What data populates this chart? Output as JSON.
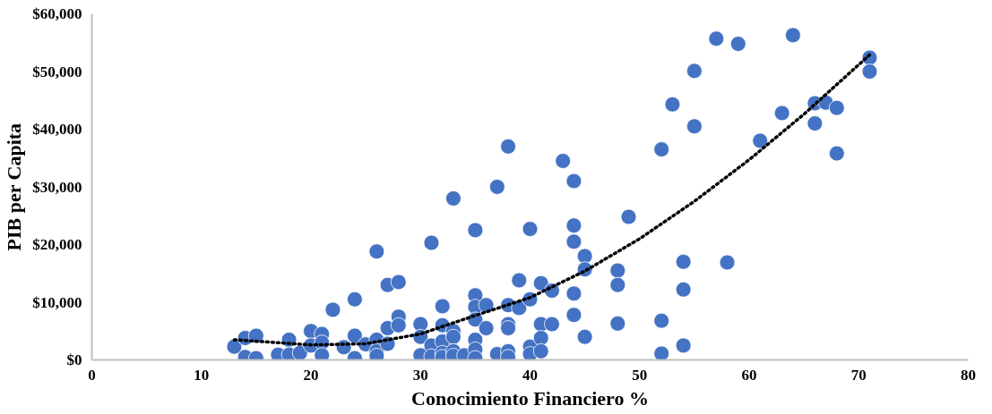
{
  "chart_data": {
    "type": "scatter",
    "xlabel": "Conocimiento Financiero %",
    "ylabel": "PIB per Capita",
    "xlim": [
      0,
      80
    ],
    "xticks": [
      0,
      10,
      20,
      30,
      40,
      50,
      60,
      70,
      80
    ],
    "ylim": [
      0,
      60000
    ],
    "yticks": [
      {
        "value": 0,
        "label": "$0"
      },
      {
        "value": 10000,
        "label": "$10,000"
      },
      {
        "value": 20000,
        "label": "$20,000"
      },
      {
        "value": 30000,
        "label": "$30,000"
      },
      {
        "value": 40000,
        "label": "$40,000"
      },
      {
        "value": 50000,
        "label": "$50,000"
      },
      {
        "value": 60000,
        "label": "$60,000"
      }
    ],
    "grid": false,
    "series": [
      {
        "color": "#4472c4",
        "marker": "circle",
        "x": [
          13,
          14,
          14,
          15,
          15,
          17,
          18,
          18,
          19,
          20,
          20,
          21,
          21,
          21,
          22,
          23,
          24,
          24,
          24,
          25,
          26,
          26,
          26,
          26,
          27,
          27,
          27,
          28,
          28,
          28,
          30,
          30,
          30,
          31,
          31,
          31,
          32,
          32,
          32,
          32,
          32,
          33,
          33,
          33,
          33,
          33,
          34,
          35,
          35,
          35,
          35,
          35,
          35,
          35,
          36,
          36,
          37,
          37,
          38,
          38,
          38,
          38,
          38,
          38,
          39,
          39,
          40,
          40,
          40,
          40,
          41,
          41,
          41,
          41,
          42,
          42,
          43,
          44,
          44,
          44,
          44,
          44,
          45,
          45,
          45,
          48,
          48,
          48,
          49,
          52,
          52,
          52,
          53,
          54,
          54,
          54,
          55,
          55,
          57,
          58,
          59,
          61,
          63,
          64,
          66,
          66,
          67,
          68,
          68,
          71,
          71
        ],
        "values": [
          2300,
          3800,
          500,
          4200,
          300,
          900,
          3500,
          900,
          1200,
          5000,
          2500,
          4500,
          3000,
          800,
          8700,
          2200,
          10500,
          4200,
          300,
          2700,
          18800,
          3500,
          1500,
          700,
          13000,
          5500,
          2800,
          13500,
          7500,
          6000,
          6200,
          4000,
          800,
          20300,
          2500,
          600,
          9300,
          6000,
          3200,
          1200,
          500,
          28000,
          5000,
          4000,
          1500,
          700,
          800,
          22500,
          11200,
          9200,
          7000,
          3500,
          1800,
          300,
          9500,
          5500,
          30000,
          1000,
          37000,
          9500,
          6200,
          5500,
          1500,
          500,
          13800,
          9000,
          22700,
          10500,
          2300,
          1000,
          13300,
          6200,
          3800,
          1500,
          12000,
          6200,
          34500,
          31000,
          23300,
          20500,
          11500,
          7800,
          18000,
          15700,
          4000,
          15500,
          13000,
          6300,
          24800,
          36500,
          6800,
          1100,
          44300,
          17000,
          12200,
          2500,
          50100,
          40500,
          55700,
          16900,
          54800,
          38000,
          42800,
          56300,
          44500,
          41000,
          44600,
          43700,
          35800,
          52400,
          50000
        ]
      },
      {
        "type": "line",
        "color": "#000000",
        "line_style": "dotted",
        "marker": "none",
        "x": [
          13,
          20,
          25,
          30,
          35,
          40,
          45,
          50,
          55,
          60,
          65,
          71
        ],
        "values": [
          3500,
          2600,
          2800,
          4500,
          7700,
          10800,
          15400,
          21000,
          27500,
          34700,
          42600,
          52900
        ]
      }
    ]
  }
}
